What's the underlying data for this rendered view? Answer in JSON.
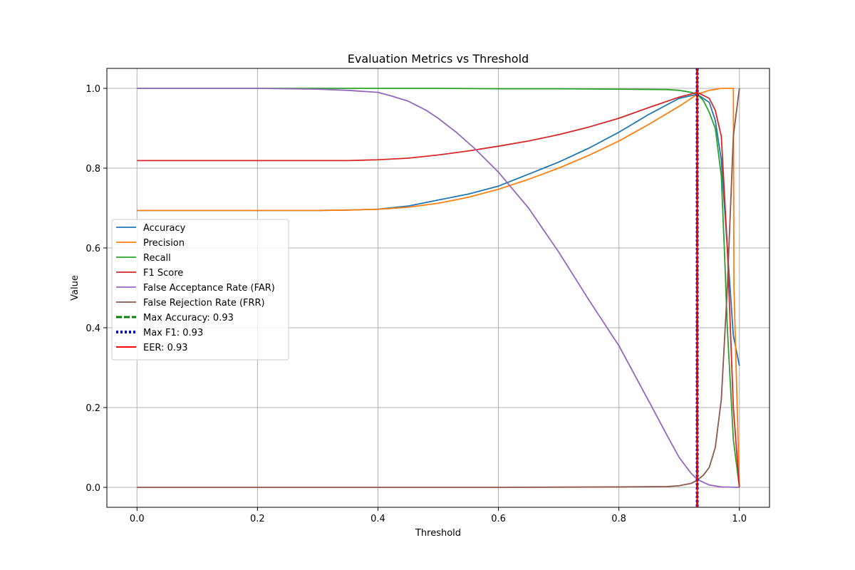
{
  "chart_data": {
    "type": "line",
    "title": "Evaluation Metrics vs Threshold",
    "xlabel": "Threshold",
    "ylabel": "Value",
    "xlim": [
      -0.05,
      1.05
    ],
    "ylim": [
      -0.05,
      1.05
    ],
    "xticks": [
      0.0,
      0.2,
      0.4,
      0.6,
      0.8,
      1.0
    ],
    "xtick_labels": [
      "0.0",
      "0.2",
      "0.4",
      "0.6",
      "0.8",
      "1.0"
    ],
    "yticks": [
      0.0,
      0.2,
      0.4,
      0.6,
      0.8,
      1.0
    ],
    "ytick_labels": [
      "0.0",
      "0.2",
      "0.4",
      "0.6",
      "0.8",
      "1.0"
    ],
    "grid": true,
    "legend_position": "center-left",
    "series": [
      {
        "name": "Accuracy",
        "color": "#1f77b4",
        "x": [
          0.0,
          0.1,
          0.2,
          0.3,
          0.35,
          0.4,
          0.45,
          0.5,
          0.55,
          0.6,
          0.65,
          0.7,
          0.75,
          0.8,
          0.85,
          0.9,
          0.93,
          0.95,
          0.96,
          0.97,
          0.98,
          0.99,
          1.0
        ],
        "y": [
          0.694,
          0.694,
          0.694,
          0.694,
          0.695,
          0.697,
          0.705,
          0.72,
          0.735,
          0.755,
          0.785,
          0.815,
          0.85,
          0.89,
          0.935,
          0.975,
          0.985,
          0.965,
          0.92,
          0.82,
          0.6,
          0.38,
          0.305
        ]
      },
      {
        "name": "Precision",
        "color": "#ff7f0e",
        "x": [
          0.0,
          0.1,
          0.2,
          0.3,
          0.35,
          0.4,
          0.45,
          0.5,
          0.55,
          0.6,
          0.65,
          0.7,
          0.75,
          0.8,
          0.85,
          0.9,
          0.93,
          0.95,
          0.97,
          0.99,
          0.991,
          1.0
        ],
        "y": [
          0.694,
          0.694,
          0.694,
          0.694,
          0.695,
          0.697,
          0.702,
          0.712,
          0.727,
          0.747,
          0.772,
          0.8,
          0.832,
          0.868,
          0.91,
          0.955,
          0.985,
          0.995,
          1.0,
          1.0,
          0.5,
          0.0
        ]
      },
      {
        "name": "Recall",
        "color": "#2ca02c",
        "x": [
          0.0,
          0.2,
          0.4,
          0.5,
          0.6,
          0.7,
          0.8,
          0.88,
          0.9,
          0.92,
          0.93,
          0.94,
          0.95,
          0.96,
          0.97,
          0.975,
          0.98,
          0.99,
          1.0
        ],
        "y": [
          1.0,
          1.0,
          1.0,
          1.0,
          0.999,
          0.999,
          0.998,
          0.997,
          0.995,
          0.99,
          0.985,
          0.97,
          0.94,
          0.9,
          0.78,
          0.6,
          0.4,
          0.12,
          0.0
        ]
      },
      {
        "name": "F1 Score",
        "color": "#d62728",
        "x": [
          0.0,
          0.2,
          0.35,
          0.4,
          0.45,
          0.5,
          0.55,
          0.6,
          0.65,
          0.7,
          0.75,
          0.8,
          0.85,
          0.9,
          0.93,
          0.95,
          0.96,
          0.97,
          0.98,
          0.99,
          1.0
        ],
        "y": [
          0.819,
          0.819,
          0.819,
          0.821,
          0.825,
          0.833,
          0.843,
          0.855,
          0.868,
          0.884,
          0.903,
          0.925,
          0.952,
          0.978,
          0.99,
          0.975,
          0.945,
          0.88,
          0.6,
          0.2,
          0.0
        ]
      },
      {
        "name": "False Acceptance Rate (FAR)",
        "color": "#9467bd",
        "x": [
          0.0,
          0.1,
          0.2,
          0.3,
          0.35,
          0.4,
          0.42,
          0.45,
          0.48,
          0.5,
          0.53,
          0.56,
          0.6,
          0.65,
          0.7,
          0.75,
          0.8,
          0.85,
          0.88,
          0.9,
          0.92,
          0.93,
          0.95,
          0.97,
          1.0
        ],
        "y": [
          1.0,
          1.0,
          1.0,
          0.998,
          0.995,
          0.99,
          0.982,
          0.968,
          0.945,
          0.925,
          0.89,
          0.85,
          0.79,
          0.7,
          0.59,
          0.47,
          0.355,
          0.215,
          0.13,
          0.075,
          0.035,
          0.02,
          0.006,
          0.001,
          0.0
        ]
      },
      {
        "name": "False Rejection Rate (FRR)",
        "color": "#8c564b",
        "x": [
          0.0,
          0.5,
          0.6,
          0.8,
          0.88,
          0.9,
          0.92,
          0.93,
          0.94,
          0.95,
          0.96,
          0.97,
          0.98,
          0.99,
          1.0
        ],
        "y": [
          0.0,
          0.0,
          0.0,
          0.001,
          0.002,
          0.004,
          0.01,
          0.018,
          0.03,
          0.05,
          0.1,
          0.22,
          0.5,
          0.88,
          1.0
        ]
      }
    ],
    "vlines": [
      {
        "name": "Max Accuracy: 0.93",
        "x": 0.93,
        "color": "#008000",
        "style": "dashed"
      },
      {
        "name": "Max F1: 0.93",
        "x": 0.93,
        "color": "#0000ff",
        "style": "dotted"
      },
      {
        "name": "EER: 0.93",
        "x": 0.93,
        "color": "#ff0000",
        "style": "solid"
      }
    ]
  }
}
